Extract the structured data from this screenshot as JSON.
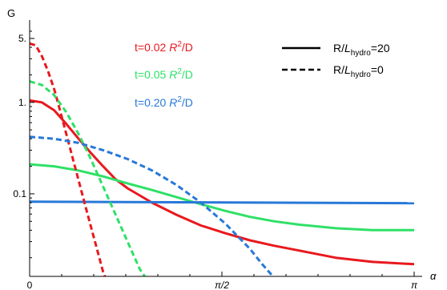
{
  "chart_data": {
    "type": "line",
    "ylabel": "G",
    "xlabel": "α",
    "y_scale": "log",
    "ylim": [
      0.0125,
      6.5
    ],
    "xlim": [
      0,
      3.1416
    ],
    "x_ticks": [
      {
        "value": 0,
        "label": "0"
      },
      {
        "value": 1.5708,
        "label": "π/2"
      },
      {
        "value": 3.1416,
        "label": "π"
      }
    ],
    "y_ticks": [
      {
        "value": 0.1,
        "label": "0.1"
      },
      {
        "value": 1,
        "label": "1."
      },
      {
        "value": 5,
        "label": "5."
      }
    ],
    "annotations": [
      {
        "prefix": "t=0.02 ",
        "italic": "R",
        "sup": "2",
        "suffix": "/D",
        "color": "#e8191e"
      },
      {
        "prefix": "t=0.05 ",
        "italic": "R",
        "sup": "2",
        "suffix": "/D",
        "color": "#2fe067"
      },
      {
        "prefix": "t=0.20 ",
        "italic": "R",
        "sup": "2",
        "suffix": "/D",
        "color": "#2878d8"
      }
    ],
    "legend": {
      "position": "top-right",
      "entries": [
        {
          "style": "solid",
          "pre": "R/",
          "italic": "L",
          "sub": "hydro",
          "post": "=20"
        },
        {
          "style": "dashed",
          "pre": "R/",
          "italic": "L",
          "sub": "hydro",
          "post": "=0"
        }
      ]
    },
    "series": [
      {
        "time": "0.02",
        "style": "solid",
        "color": "#e8191e",
        "x": [
          0,
          0.1,
          0.2,
          0.3,
          0.4,
          0.5,
          0.6,
          0.7,
          0.8,
          1.0,
          1.2,
          1.4,
          1.6,
          1.8,
          2.0,
          2.2,
          2.5,
          2.8,
          3.1416
        ],
        "y": [
          1.05,
          1.0,
          0.82,
          0.58,
          0.4,
          0.28,
          0.2,
          0.145,
          0.115,
          0.08,
          0.059,
          0.045,
          0.037,
          0.031,
          0.027,
          0.024,
          0.02,
          0.018,
          0.017
        ]
      },
      {
        "time": "0.05",
        "style": "solid",
        "color": "#2fe067",
        "x": [
          0,
          0.2,
          0.4,
          0.6,
          0.8,
          1.0,
          1.2,
          1.4,
          1.6,
          1.8,
          2.0,
          2.2,
          2.5,
          2.8,
          3.1416
        ],
        "y": [
          0.21,
          0.2,
          0.18,
          0.155,
          0.13,
          0.11,
          0.092,
          0.077,
          0.065,
          0.056,
          0.05,
          0.046,
          0.042,
          0.04,
          0.04
        ]
      },
      {
        "time": "0.20",
        "style": "solid",
        "color": "#2878d8",
        "x": [
          0,
          3.1416
        ],
        "y": [
          0.082,
          0.079
        ]
      },
      {
        "time": "0.02",
        "style": "dashed",
        "color": "#e8191e",
        "x": [
          0,
          0.05,
          0.1,
          0.15,
          0.2,
          0.25,
          0.3,
          0.35,
          0.4,
          0.45,
          0.5,
          0.55,
          0.6,
          0.62
        ],
        "y": [
          4.4,
          4.2,
          3.2,
          2.2,
          1.4,
          0.8,
          0.45,
          0.25,
          0.14,
          0.078,
          0.044,
          0.025,
          0.014,
          0.012
        ]
      },
      {
        "time": "0.05",
        "style": "dashed",
        "color": "#2fe067",
        "x": [
          0,
          0.1,
          0.2,
          0.3,
          0.4,
          0.5,
          0.6,
          0.7,
          0.8,
          0.9,
          0.95
        ],
        "y": [
          1.7,
          1.55,
          1.2,
          0.78,
          0.45,
          0.24,
          0.12,
          0.06,
          0.03,
          0.015,
          0.012
        ]
      },
      {
        "time": "0.20",
        "style": "dashed",
        "color": "#2878d8",
        "x": [
          0,
          0.2,
          0.4,
          0.6,
          0.8,
          1.0,
          1.2,
          1.4,
          1.6,
          1.8,
          1.9,
          2.0
        ],
        "y": [
          0.42,
          0.4,
          0.36,
          0.3,
          0.24,
          0.18,
          0.125,
          0.08,
          0.047,
          0.025,
          0.017,
          0.012
        ]
      }
    ]
  }
}
